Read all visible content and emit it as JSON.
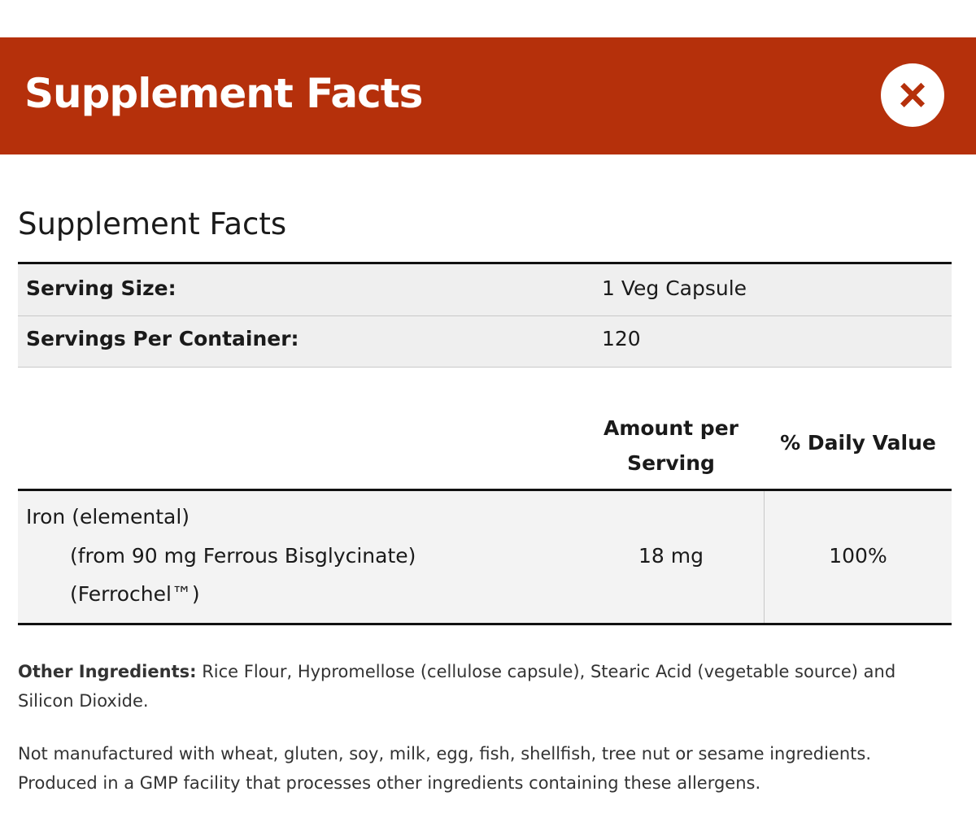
{
  "header": {
    "title": "Supplement Facts",
    "close": "×"
  },
  "panel": {
    "heading": "Supplement Facts",
    "serving_table": {
      "rows": [
        [
          "Serving Size:",
          "1 Veg Capsule"
        ],
        [
          "Servings Per Container:",
          "120"
        ]
      ]
    },
    "facts_table": {
      "columns": [
        "Amount per Serving",
        "% Daily Value"
      ],
      "rows": [
        {
          "name": "Iron (elemental)",
          "source": "(from 90 mg Ferrous Bisglycinate)",
          "brand": "(Ferrochel™)",
          "amount": "18 mg",
          "daily_value": "100%"
        }
      ]
    },
    "other_ingredients": {
      "label": "Other Ingredients:",
      "text": "Rice Flour, Hypromellose (cellulose capsule), Stearic Acid (vegetable source) and Silicon Dioxide."
    },
    "allergen_notes": [
      "Not manufactured with wheat, gluten, soy, milk, egg, fish, shellfish, tree nut or sesame ingredients.",
      "Produced in a GMP facility that processes other ingredients containing these allergens."
    ]
  }
}
